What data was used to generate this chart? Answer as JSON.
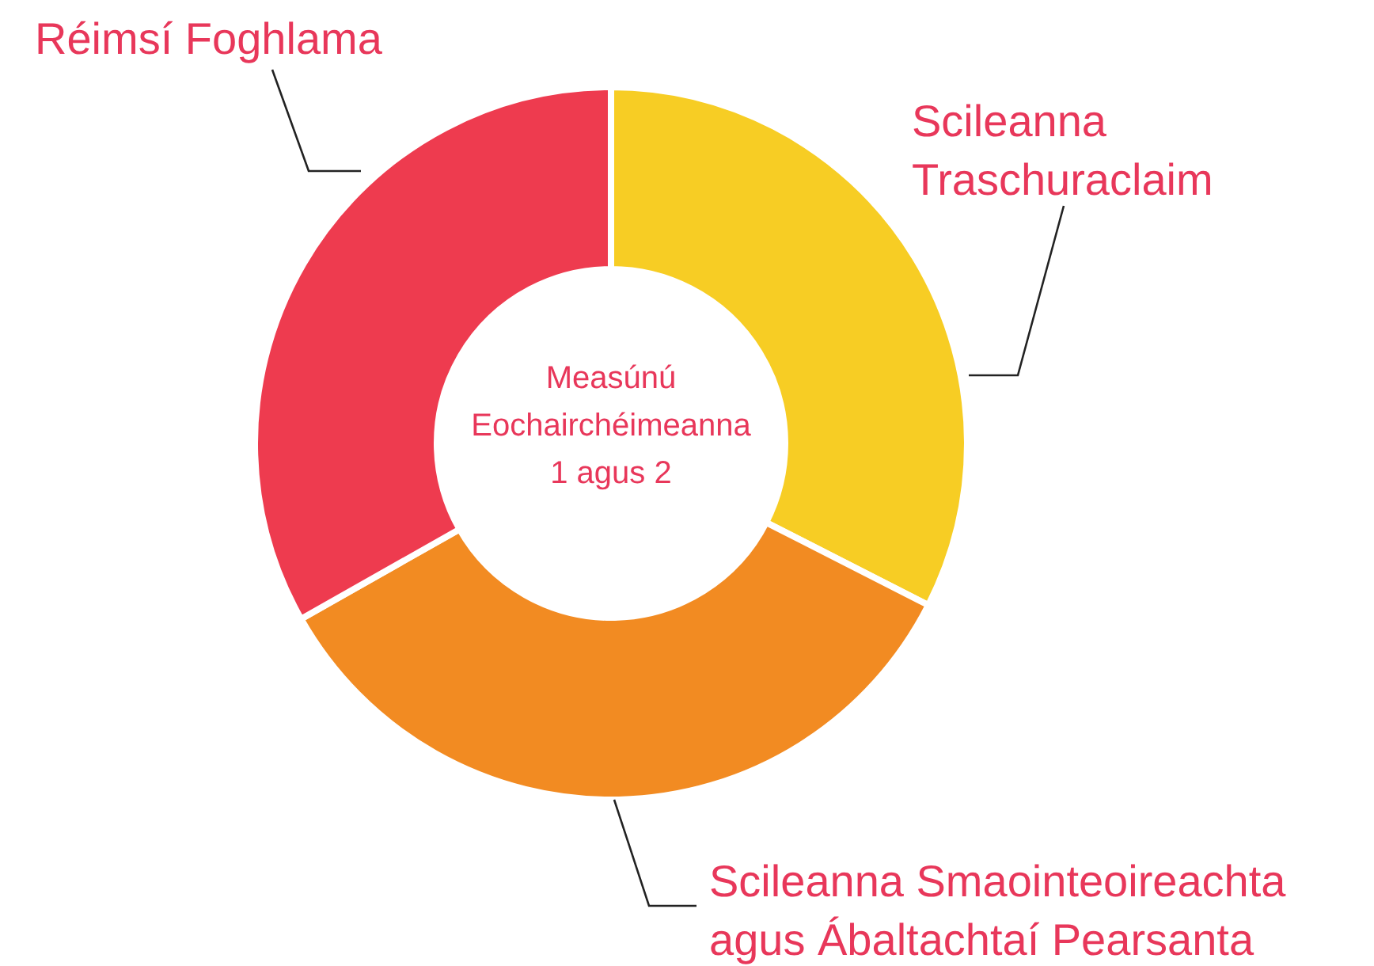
{
  "chart_data": {
    "type": "donut",
    "title": "Measúnú Eochairchéimeanna 1 agus 2",
    "categories": [
      "Scileanna Traschuraclaim",
      "Scileanna Smaointeoireachta agus Ábaltachtaí Pearsanta",
      "Réimsí Foghlama"
    ],
    "values": [
      32.5,
      34.3,
      33.2
    ],
    "colors": [
      "#f7cd24",
      "#f28b22",
      "#ee3b4f"
    ]
  }
}
